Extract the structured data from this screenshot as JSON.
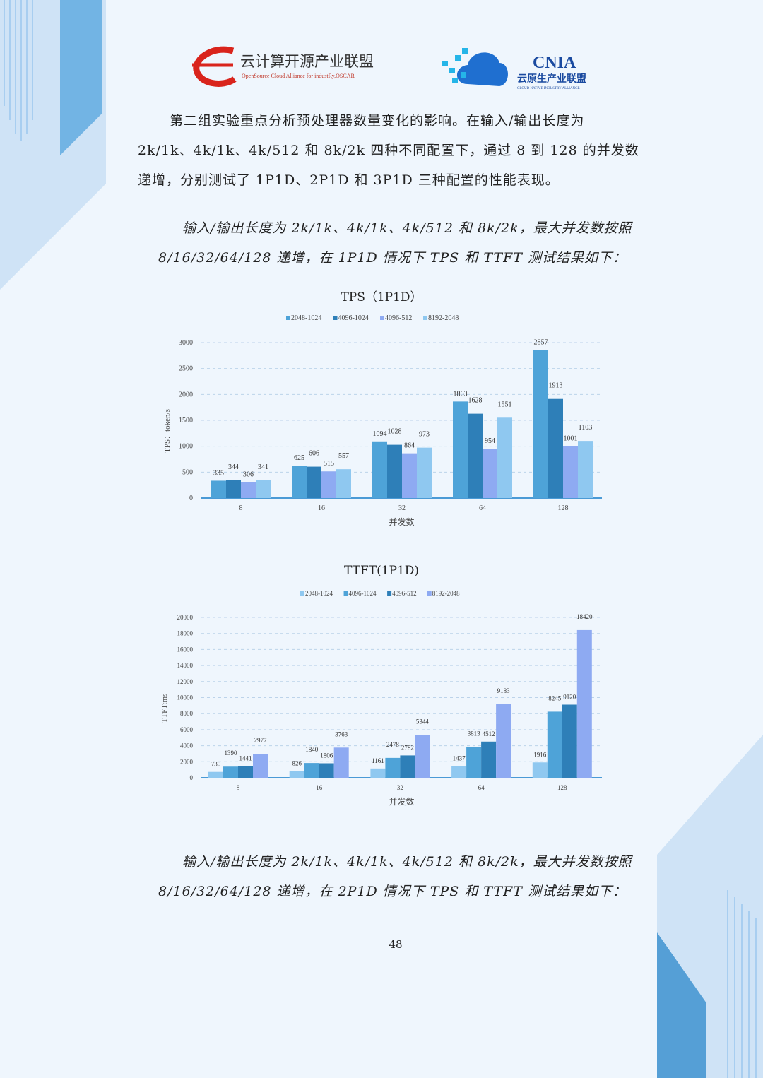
{
  "header": {
    "logo_left": {
      "name": "云计算开源产业联盟",
      "subtitle": "OpenSource Cloud Alliance for industRy,OSCAR"
    },
    "logo_right": {
      "name": "CNIA",
      "subtitle": "云原生产业联盟",
      "small": "CLOUD NATIVE INDUSTRY ALLIANCE"
    }
  },
  "body": {
    "para1": [
      "第二组实验重点分析预处理器数量变化的影响。在输入/输出长度为",
      "2k/1k、4k/1k、4k/512 和 8k/2k 四种不同配置下，通过 8 到 128 的并发数",
      "递增，分别测试了 1P1D、2P1D 和 3P1D 三种配置的性能表现。"
    ],
    "caption1": [
      "输入/输出长度为 2k/1k、4k/1k、4k/512 和 8k/2k，最大并发数按照",
      "8/16/32/64/128 递增，在 1P1D 情况下 TPS 和 TTFT 测试结果如下："
    ],
    "caption2": [
      "输入/输出长度为 2k/1k、4k/1k、4k/512 和 8k/2k，最大并发数按照",
      "8/16/32/64/128 递增，在 2P1D 情况下 TPS 和 TTFT 测试结果如下："
    ],
    "page_number": "48"
  },
  "chart_data": [
    {
      "type": "bar",
      "title": "TPS（1P1D）",
      "xlabel": "并发数",
      "ylabel": "TPS：token/s",
      "categories": [
        "8",
        "16",
        "32",
        "64",
        "128"
      ],
      "ylim": [
        0,
        3000
      ],
      "yticks": [
        0,
        500,
        1000,
        1500,
        2000,
        2500,
        3000
      ],
      "grid": true,
      "legend": "top",
      "series": [
        {
          "name": "2048-1024",
          "color": "#4ea3d8",
          "values": [
            335,
            625,
            1094,
            1863,
            2857
          ]
        },
        {
          "name": "4096-1024",
          "color": "#2e7fb8",
          "values": [
            344,
            606,
            1028,
            1628,
            1913
          ]
        },
        {
          "name": "4096-512",
          "color": "#8eaaf2",
          "values": [
            306,
            515,
            864,
            954,
            1001
          ]
        },
        {
          "name": "8192-2048",
          "color": "#8fc8f0",
          "values": [
            341,
            557,
            973,
            1551,
            1103
          ]
        }
      ]
    },
    {
      "type": "bar",
      "title": "TTFT(1P1D)",
      "xlabel": "并发数",
      "ylabel": "TTFT:ms",
      "categories": [
        "8",
        "16",
        "32",
        "64",
        "128"
      ],
      "ylim": [
        0,
        20000
      ],
      "yticks": [
        0,
        2000,
        4000,
        6000,
        8000,
        10000,
        12000,
        14000,
        16000,
        18000,
        20000
      ],
      "grid": true,
      "legend": "top",
      "series": [
        {
          "name": "2048-1024",
          "color": "#8fc8f0",
          "values": [
            730,
            826,
            1161,
            1437,
            1916
          ]
        },
        {
          "name": "4096-1024",
          "color": "#4ea3d8",
          "values": [
            1390,
            1840,
            2478,
            3813,
            8245
          ]
        },
        {
          "name": "4096-512",
          "color": "#2e7fb8",
          "values": [
            1441,
            1806,
            2782,
            4512,
            9120
          ]
        },
        {
          "name": "8192-2048",
          "color": "#8eaaf2",
          "values": [
            2977,
            3763,
            5344,
            9183,
            18420
          ]
        }
      ]
    }
  ]
}
